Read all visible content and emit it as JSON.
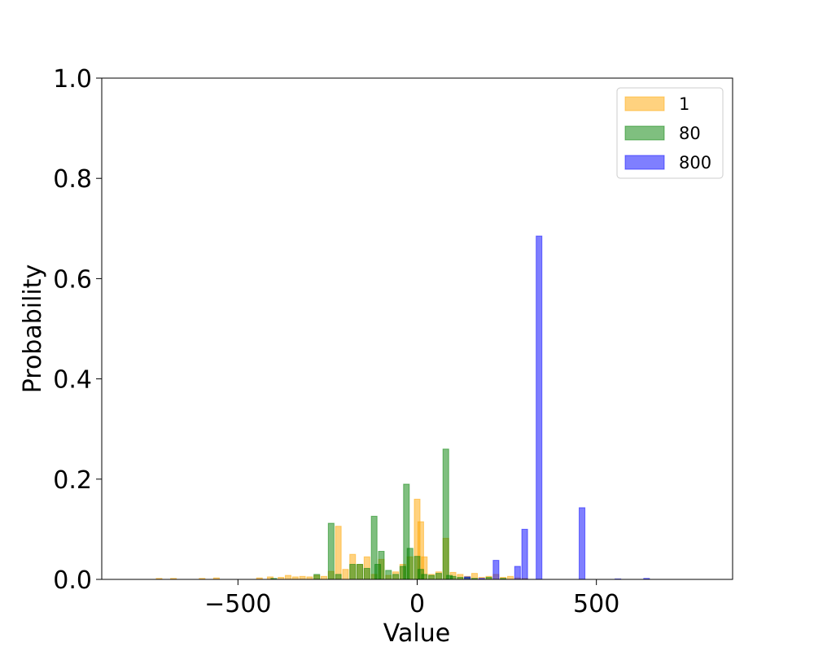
{
  "chart_data": {
    "type": "bar",
    "title": "",
    "xlabel": "Value",
    "ylabel": "Probability",
    "xlim": [
      -880,
      880
    ],
    "ylim": [
      0,
      1.0
    ],
    "xticks": [
      -500,
      0,
      500
    ],
    "xtick_labels": [
      "−500",
      "0",
      "500"
    ],
    "yticks": [
      0.0,
      0.2,
      0.4,
      0.6,
      0.8,
      1.0
    ],
    "ytick_labels": [
      "0.0",
      "0.2",
      "0.4",
      "0.6",
      "0.8",
      "1.0"
    ],
    "bin_width": 16,
    "legend_position": "top-right",
    "grid": false,
    "series": [
      {
        "name": "1",
        "color": "#FFA500",
        "x": [
          -720,
          -680,
          -600,
          -560,
          -440,
          -410,
          -380,
          -360,
          -340,
          -320,
          -300,
          -280,
          -260,
          -240,
          -220,
          -200,
          -180,
          -160,
          -140,
          -120,
          -100,
          -80,
          -60,
          -40,
          -20,
          0,
          10,
          20,
          40,
          60,
          80,
          100,
          120,
          140,
          160,
          180,
          200,
          220,
          240,
          260,
          280,
          300
        ],
        "values": [
          0.002,
          0.002,
          0.002,
          0.003,
          0.003,
          0.005,
          0.004,
          0.008,
          0.005,
          0.006,
          0.005,
          0.008,
          0.006,
          0.016,
          0.106,
          0.02,
          0.05,
          0.03,
          0.045,
          0.01,
          0.04,
          0.008,
          0.015,
          0.03,
          0.045,
          0.16,
          0.115,
          0.045,
          0.01,
          0.015,
          0.082,
          0.014,
          0.01,
          0.006,
          0.012,
          0.004,
          0.006,
          0.01,
          0.004,
          0.006,
          0.003,
          0.002
        ]
      },
      {
        "name": "80",
        "color": "#008000",
        "x": [
          -400,
          -280,
          -240,
          -220,
          -180,
          -160,
          -140,
          -120,
          -110,
          -100,
          -80,
          -60,
          -40,
          -30,
          -20,
          0,
          10,
          20,
          40,
          60,
          80,
          90,
          100,
          120,
          140,
          160,
          200,
          240
        ],
        "values": [
          0.002,
          0.01,
          0.112,
          0.01,
          0.03,
          0.03,
          0.022,
          0.126,
          0.03,
          0.056,
          0.018,
          0.01,
          0.026,
          0.19,
          0.062,
          0.046,
          0.02,
          0.01,
          0.008,
          0.012,
          0.26,
          0.008,
          0.006,
          0.004,
          0.004,
          0.002,
          0.004,
          0.002
        ]
      },
      {
        "name": "800",
        "color": "#0000FF",
        "x": [
          140,
          180,
          220,
          280,
          300,
          340,
          460,
          560,
          640
        ],
        "values": [
          0.005,
          0.002,
          0.038,
          0.026,
          0.1,
          0.685,
          0.143,
          0.001,
          0.002
        ]
      }
    ]
  }
}
